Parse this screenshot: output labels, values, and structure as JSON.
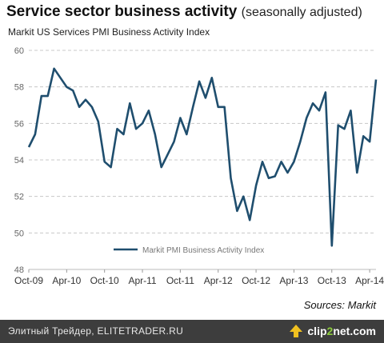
{
  "header": {
    "title": "Service sector business activity",
    "title_note": "(seasonally adjusted)",
    "subtitle": "Markit US Services PMI Business Activity Index"
  },
  "source": "Sources: Markit",
  "footer": {
    "watermark": "Элитный Трейдер, ELITETRADER.RU",
    "brand_a": "clip",
    "brand_b": "2",
    "brand_c": "net.com",
    "logo_icon": "clip2net-arrow-icon",
    "bar_color": "#3d3d3d"
  },
  "chart_data": {
    "type": "line",
    "title": "Service sector business activity",
    "subtitle": "Markit US Services PMI Business Activity Index",
    "ylim": [
      48,
      60
    ],
    "yticks": [
      48,
      50,
      52,
      54,
      56,
      58,
      60
    ],
    "xlim": [
      "2009-10",
      "2014-05"
    ],
    "xticks": [
      {
        "x": "2009-10",
        "label": "Oct-09"
      },
      {
        "x": "2010-04",
        "label": "Apr-10"
      },
      {
        "x": "2010-10",
        "label": "Oct-10"
      },
      {
        "x": "2011-04",
        "label": "Apr-11"
      },
      {
        "x": "2011-10",
        "label": "Oct-11"
      },
      {
        "x": "2012-04",
        "label": "Apr-12"
      },
      {
        "x": "2012-10",
        "label": "Oct-12"
      },
      {
        "x": "2013-04",
        "label": "Apr-13"
      },
      {
        "x": "2013-10",
        "label": "Oct-13"
      },
      {
        "x": "2014-04",
        "label": "Apr-14"
      }
    ],
    "grid": "horizontal-dashed",
    "legend_position": "bottom-center",
    "series": [
      {
        "name": "Markit PMI Business Activity Index",
        "color": "#1f4e6e",
        "x": [
          "2009-10",
          "2009-11",
          "2009-12",
          "2010-01",
          "2010-02",
          "2010-03",
          "2010-04",
          "2010-05",
          "2010-06",
          "2010-07",
          "2010-08",
          "2010-09",
          "2010-10",
          "2010-11",
          "2010-12",
          "2011-01",
          "2011-02",
          "2011-03",
          "2011-04",
          "2011-05",
          "2011-06",
          "2011-07",
          "2011-08",
          "2011-09",
          "2011-10",
          "2011-11",
          "2011-12",
          "2012-01",
          "2012-02",
          "2012-03",
          "2012-04",
          "2012-05",
          "2012-06",
          "2012-07",
          "2012-08",
          "2012-09",
          "2012-10",
          "2012-11",
          "2012-12",
          "2013-01",
          "2013-02",
          "2013-03",
          "2013-04",
          "2013-05",
          "2013-06",
          "2013-07",
          "2013-08",
          "2013-09",
          "2013-10",
          "2013-11",
          "2013-12",
          "2014-01",
          "2014-02",
          "2014-03",
          "2014-04",
          "2014-05"
        ],
        "values": [
          54.7,
          55.4,
          57.5,
          57.5,
          59.0,
          58.5,
          58.0,
          57.8,
          56.9,
          57.3,
          56.9,
          56.1,
          53.9,
          53.6,
          55.7,
          55.4,
          57.1,
          55.7,
          56.0,
          56.7,
          55.4,
          53.6,
          54.3,
          55.0,
          56.3,
          55.4,
          56.9,
          58.3,
          57.4,
          58.5,
          56.9,
          56.9,
          53.0,
          51.2,
          52.0,
          50.7,
          52.6,
          53.9,
          53.0,
          53.1,
          53.9,
          53.3,
          53.9,
          55.0,
          56.3,
          57.1,
          56.7,
          57.7,
          49.3,
          55.9,
          55.7,
          56.7,
          53.3,
          55.3,
          55.0,
          58.4
        ]
      }
    ]
  }
}
